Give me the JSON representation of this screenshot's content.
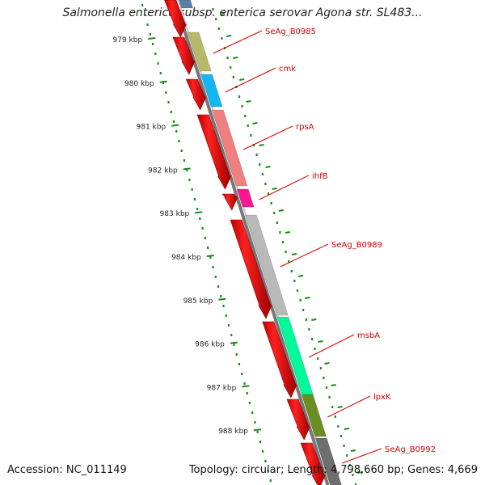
{
  "title": "Salmonella enterica subsp. enterica serovar Agona str. SL483...",
  "footer": {
    "accession_label": "Accession:",
    "accession_value": "NC_011149",
    "topology_label": "Topology:",
    "topology_value": "circular",
    "length_label": "Length:",
    "length_value": "4,798,660 bp",
    "genes_label": "Genes:",
    "genes_value": "4,669"
  },
  "ruler": {
    "unit": "kbp",
    "ticks": [
      "979 kbp",
      "980 kbp",
      "981 kbp",
      "982 kbp",
      "983 kbp",
      "984 kbp",
      "985 kbp",
      "986 kbp",
      "987 kbp",
      "988 kbp"
    ],
    "tick_values_kbp": [
      979,
      980,
      981,
      982,
      983,
      984,
      985,
      986,
      987,
      988
    ]
  },
  "genes": [
    {
      "name": "SeAg_B0985",
      "color": "#b8b86a"
    },
    {
      "name": "cmk",
      "color": "#12b6f0"
    },
    {
      "name": "rpsA",
      "color": "#f08080"
    },
    {
      "name": "ihfB",
      "color": "#ff1493"
    },
    {
      "name": "SeAg_B0989",
      "color": "#b9b9b9"
    },
    {
      "name": "msbA",
      "color": "#00fa9a"
    },
    {
      "name": "lpxK",
      "color": "#6b8e23"
    },
    {
      "name": "SeAg_B0992",
      "color": "#6e6e6e"
    }
  ],
  "colors": {
    "cds_strand": "#ff0000",
    "label_line": "#d00000",
    "ruler_dots": "#1a8a1a",
    "backbone": "#888888"
  }
}
